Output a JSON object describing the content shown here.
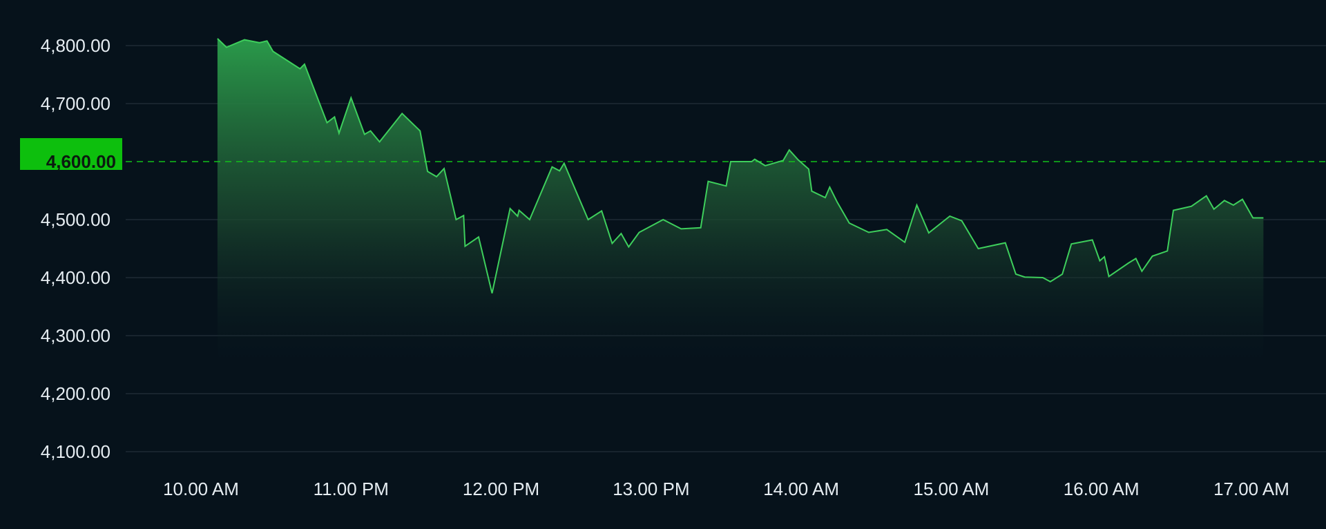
{
  "colors": {
    "background": "#06121b",
    "grid": "#2a3640",
    "line": "#3ecf5c",
    "area_top": "#2a9a4a",
    "reference": "#12c21a",
    "badge": "#0dbf0d",
    "text": "#e6edf2"
  },
  "chart_data": {
    "type": "area",
    "title": "",
    "xlabel": "",
    "ylabel": "",
    "ylim": [
      4050,
      4850
    ],
    "y_ticks": [
      {
        "value": 4800,
        "label": "4,800.00"
      },
      {
        "value": 4700,
        "label": "4,700.00"
      },
      {
        "value": 4500,
        "label": "4,500.00"
      },
      {
        "value": 4400,
        "label": "4,400.00"
      },
      {
        "value": 4300,
        "label": "4,300.00"
      },
      {
        "value": 4200,
        "label": "4,200.00"
      },
      {
        "value": 4100,
        "label": "4,100.00"
      }
    ],
    "x_ticks": [
      {
        "value": 10.0,
        "label": "10.00 AM"
      },
      {
        "value": 11.0,
        "label": "11.00 PM"
      },
      {
        "value": 12.0,
        "label": "12.00 PM"
      },
      {
        "value": 13.0,
        "label": "13.00 PM"
      },
      {
        "value": 14.0,
        "label": "14.00 AM"
      },
      {
        "value": 15.0,
        "label": "15.00 AM"
      },
      {
        "value": 16.0,
        "label": "16.00 AM"
      },
      {
        "value": 17.0,
        "label": "17.00 AM"
      }
    ],
    "xlim": [
      9.5,
      17.45
    ],
    "reference_line": {
      "value": 4600,
      "label": "4,600.00",
      "style": "dashed"
    },
    "grid": true,
    "series": [
      {
        "x": [
          10.11,
          10.17,
          10.29,
          10.39,
          10.44,
          10.48,
          10.66,
          10.69,
          10.84,
          10.89,
          10.92,
          11.0,
          11.09,
          11.13,
          11.19,
          11.34,
          11.46,
          11.51,
          11.57,
          11.62,
          11.7,
          11.75,
          11.76,
          11.85,
          11.94,
          12.06,
          12.11,
          12.12,
          12.19,
          12.34,
          12.39,
          12.42,
          12.58,
          12.67,
          12.74,
          12.8,
          12.85,
          12.92,
          13.08,
          13.2,
          13.33,
          13.38,
          13.5,
          13.53,
          13.55,
          13.67,
          13.69,
          13.76,
          13.88,
          13.92,
          13.98,
          14.05,
          14.07,
          14.16,
          14.19,
          14.24,
          14.32,
          14.45,
          14.57,
          14.69,
          14.77,
          14.85,
          14.99,
          15.07,
          15.18,
          15.36,
          15.43,
          15.49,
          15.61,
          15.66,
          15.74,
          15.8,
          15.94,
          15.99,
          16.02,
          16.05,
          16.18,
          16.23,
          16.27,
          16.34,
          16.44,
          16.48,
          16.6,
          16.7,
          16.75,
          16.82,
          16.88,
          16.94,
          17.01,
          17.08
        ],
        "y": [
          4812,
          4797,
          4810,
          4805,
          4808,
          4790,
          4760,
          4768,
          4667,
          4677,
          4649,
          4710,
          4647,
          4653,
          4634,
          4683,
          4653,
          4583,
          4574,
          4588,
          4500,
          4507,
          4454,
          4470,
          4373,
          4519,
          4506,
          4516,
          4500,
          4591,
          4584,
          4597,
          4500,
          4515,
          4459,
          4476,
          4453,
          4478,
          4500,
          4484,
          4486,
          4566,
          4558,
          4600,
          4600,
          4600,
          4604,
          4593,
          4602,
          4620,
          4603,
          4587,
          4549,
          4538,
          4556,
          4530,
          4494,
          4478,
          4483,
          4461,
          4525,
          4477,
          4506,
          4498,
          4450,
          4460,
          4406,
          4401,
          4400,
          4393,
          4406,
          4458,
          4465,
          4429,
          4436,
          4402,
          4425,
          4433,
          4411,
          4437,
          4446,
          4516,
          4523,
          4541,
          4518,
          4533,
          4525,
          4535,
          4503,
          4503
        ]
      }
    ]
  }
}
